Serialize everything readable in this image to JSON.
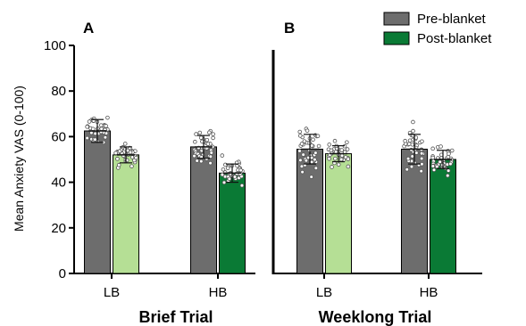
{
  "chart_data": {
    "type": "bar",
    "ylabel": "Mean Anxiety VAS (0-100)",
    "ylim": [
      0,
      100
    ],
    "yticks": [
      0,
      20,
      40,
      60,
      80,
      100
    ],
    "grid": false,
    "legend_position": "top-right",
    "legend": [
      {
        "name": "Pre-blanket",
        "color": "#6d6d6d"
      },
      {
        "name": "Post-blanket",
        "color": "#0a7a35"
      }
    ],
    "panels": [
      {
        "letter": "A",
        "title": "Brief Trial",
        "groups": [
          {
            "label": "LB",
            "bars": [
              {
                "series": "Pre-blanket",
                "value": 62.5,
                "sd": 5,
                "color": "#6d6d6d"
              },
              {
                "series": "Post-blanket",
                "value": 52,
                "sd": 3.5,
                "color": "#b5df95"
              }
            ]
          },
          {
            "label": "HB",
            "bars": [
              {
                "series": "Pre-blanket",
                "value": 55.5,
                "sd": 5,
                "color": "#6d6d6d"
              },
              {
                "series": "Post-blanket",
                "value": 44,
                "sd": 4,
                "color": "#0a7a35"
              }
            ]
          }
        ]
      },
      {
        "letter": "B",
        "title": "Weeklong Trial",
        "groups": [
          {
            "label": "LB",
            "bars": [
              {
                "series": "Pre-blanket",
                "value": 54.5,
                "sd": 6.5,
                "color": "#6d6d6d"
              },
              {
                "series": "Post-blanket",
                "value": 52.5,
                "sd": 3.5,
                "color": "#b5df95"
              }
            ]
          },
          {
            "label": "HB",
            "bars": [
              {
                "series": "Pre-blanket",
                "value": 54.5,
                "sd": 6.5,
                "color": "#6d6d6d"
              },
              {
                "series": "Post-blanket",
                "value": 50,
                "sd": 4,
                "color": "#0a7a35"
              }
            ]
          }
        ]
      }
    ]
  }
}
